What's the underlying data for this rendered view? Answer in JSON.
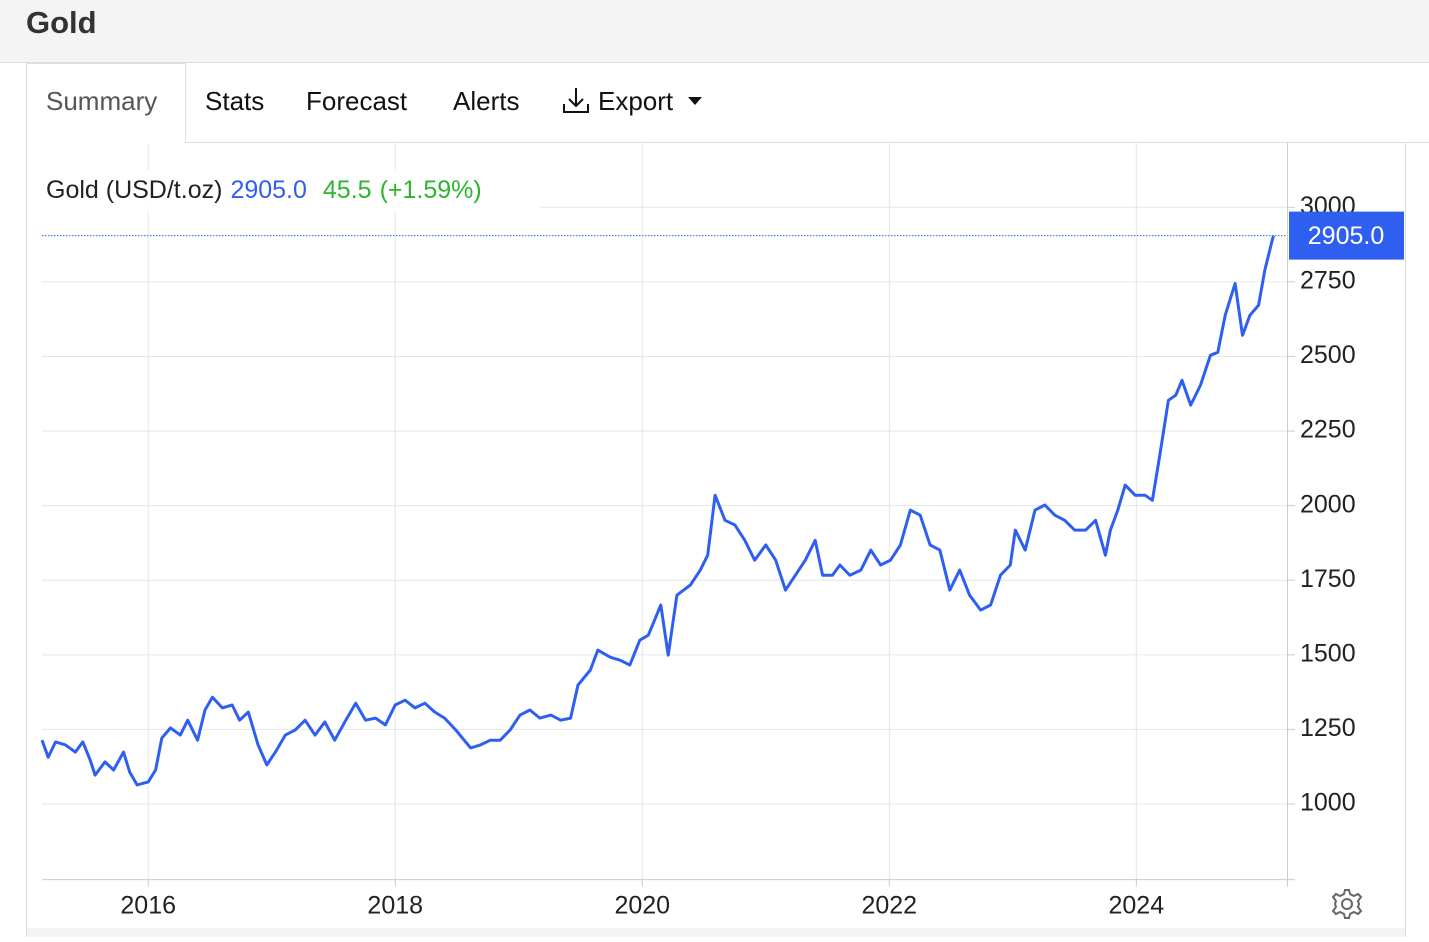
{
  "header": {
    "title": "Gold"
  },
  "tabs": [
    "Summary",
    "Stats",
    "Forecast",
    "Alerts",
    "Export"
  ],
  "chart_data": {
    "type": "line",
    "last_label": "2905.0",
    "change": 45.5,
    "change_pct_label": "(+1.59%)",
    "x": [
      2015.14,
      2015.19,
      2015.25,
      2015.33,
      2015.41,
      2015.47,
      2015.53,
      2015.57,
      2015.65,
      2015.72,
      2015.8,
      2015.85,
      2015.91,
      2016.0,
      2016.06,
      2016.11,
      2016.18,
      2016.26,
      2016.32,
      2016.4,
      2016.46,
      2016.52,
      2016.6,
      2016.68,
      2016.74,
      2016.81,
      2016.89,
      2016.96,
      2017.03,
      2017.11,
      2017.19,
      2017.27,
      2017.35,
      2017.43,
      2017.51,
      2017.6,
      2017.68,
      2017.76,
      2017.84,
      2017.92,
      2018.0,
      2018.08,
      2018.16,
      2018.24,
      2018.32,
      2018.4,
      2018.49,
      2018.61,
      2018.69,
      2018.77,
      2018.85,
      2018.93,
      2019.01,
      2019.09,
      2019.17,
      2019.26,
      2019.34,
      2019.42,
      2019.48,
      2019.58,
      2019.64,
      2019.74,
      2019.82,
      2019.9,
      2019.98,
      2020.05,
      2020.15,
      2020.21,
      2020.28,
      2020.39,
      2020.47,
      2020.53,
      2020.59,
      2020.67,
      2020.75,
      2020.83,
      2020.91,
      2021.0,
      2021.08,
      2021.16,
      2021.24,
      2021.32,
      2021.4,
      2021.46,
      2021.54,
      2021.6,
      2021.68,
      2021.77,
      2021.85,
      2021.93,
      2022.01,
      2022.09,
      2022.17,
      2022.25,
      2022.33,
      2022.41,
      2022.49,
      2022.57,
      2022.65,
      2022.74,
      2022.82,
      2022.9,
      2022.98,
      2023.02,
      2023.1,
      2023.18,
      2023.26,
      2023.34,
      2023.42,
      2023.5,
      2023.59,
      2023.67,
      2023.75,
      2023.79,
      2023.85,
      2023.91,
      2023.99,
      2024.07,
      2024.13,
      2024.19,
      2024.26,
      2024.32,
      2024.37,
      2024.44,
      2024.52,
      2024.6,
      2024.66,
      2024.72,
      2024.8,
      2024.86,
      2024.92,
      2024.99,
      2025.04,
      2025.11
    ],
    "series": [
      {
        "name": "Gold (USD/t.oz)",
        "color": "#2f5ff0",
        "values": [
          1214,
          1157,
          1208,
          1198,
          1174,
          1208,
          1147,
          1097,
          1141,
          1114,
          1174,
          1107,
          1064,
          1074,
          1114,
          1221,
          1255,
          1231,
          1281,
          1214,
          1315,
          1358,
          1322,
          1332,
          1281,
          1308,
          1198,
          1131,
          1174,
          1231,
          1248,
          1281,
          1231,
          1275,
          1214,
          1281,
          1338,
          1281,
          1288,
          1265,
          1332,
          1348,
          1322,
          1338,
          1308,
          1288,
          1248,
          1188,
          1198,
          1214,
          1214,
          1248,
          1298,
          1315,
          1288,
          1298,
          1281,
          1288,
          1399,
          1449,
          1516,
          1492,
          1482,
          1466,
          1549,
          1566,
          1667,
          1499,
          1700,
          1734,
          1784,
          1834,
          2035,
          1951,
          1935,
          1884,
          1817,
          1868,
          1817,
          1717,
          1767,
          1817,
          1884,
          1767,
          1767,
          1801,
          1767,
          1784,
          1851,
          1801,
          1817,
          1868,
          1985,
          1968,
          1868,
          1851,
          1717,
          1784,
          1700,
          1650,
          1667,
          1767,
          1801,
          1918,
          1851,
          1985,
          2002,
          1968,
          1951,
          1918,
          1918,
          1951,
          1834,
          1918,
          1985,
          2069,
          2035,
          2035,
          2018,
          2169,
          2353,
          2370,
          2420,
          2337,
          2404,
          2504,
          2514,
          2638,
          2745,
          2571,
          2638,
          2672,
          2789,
          2905
        ]
      }
    ],
    "xlim": [
      2015.14,
      2025.22
    ],
    "xticks": [
      2016,
      2018,
      2020,
      2022,
      2024
    ],
    "ylim": [
      750,
      3200
    ],
    "yticks": [
      1000,
      1250,
      1500,
      1750,
      2000,
      2250,
      2500,
      2750,
      3000
    ],
    "grid": true
  }
}
